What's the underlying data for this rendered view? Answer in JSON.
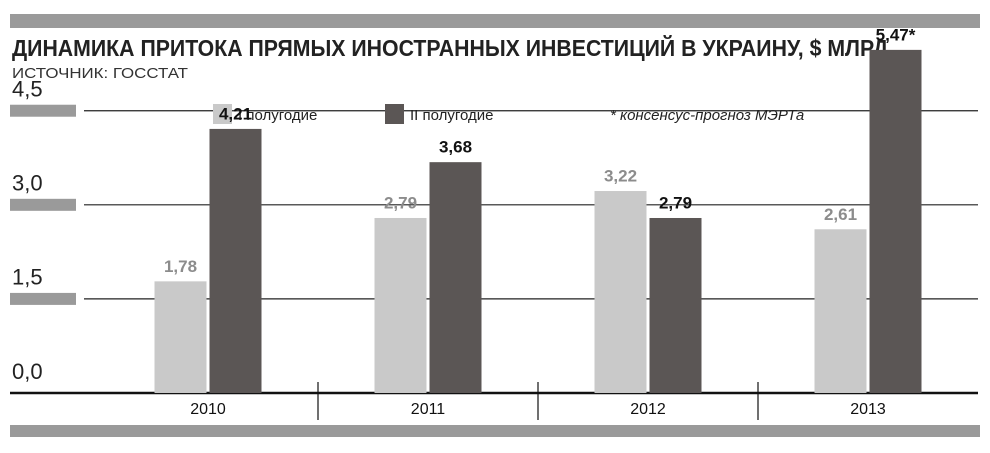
{
  "chart_data": {
    "type": "bar",
    "title": "ДИНАМИКА ПРИТОКА ПРЯМЫХ ИНОСТРАННЫХ ИНВЕСТИЦИЙ В УКРАИНУ, $ МЛРД",
    "subtitle": "ИСТОЧНИК: ГОССТАТ",
    "annotation": "* консенсус-прогноз МЭРТа",
    "categories": [
      "2010",
      "2011",
      "2012",
      "2013"
    ],
    "series": [
      {
        "name": "I полугодие",
        "color": "#c9c9c9",
        "label_color": "#8c8c8c",
        "values": [
          1.78,
          2.79,
          3.22,
          2.61
        ],
        "value_labels": [
          "1,78",
          "2,79",
          "3,22",
          "2,61"
        ]
      },
      {
        "name": "II полугодие",
        "color": "#5b5655",
        "label_color": "#111111",
        "values": [
          4.21,
          3.68,
          2.79,
          5.47
        ],
        "value_labels": [
          "4,21",
          "3,68",
          "2,79",
          "5,47*"
        ]
      }
    ],
    "ylim": [
      0,
      5.5
    ],
    "yticks": [
      {
        "value": 0,
        "label": "0,0"
      },
      {
        "value": 1.5,
        "label": "1,5"
      },
      {
        "value": 3,
        "label": "3,0"
      },
      {
        "value": 4.5,
        "label": "4,5"
      }
    ],
    "grid": true
  }
}
